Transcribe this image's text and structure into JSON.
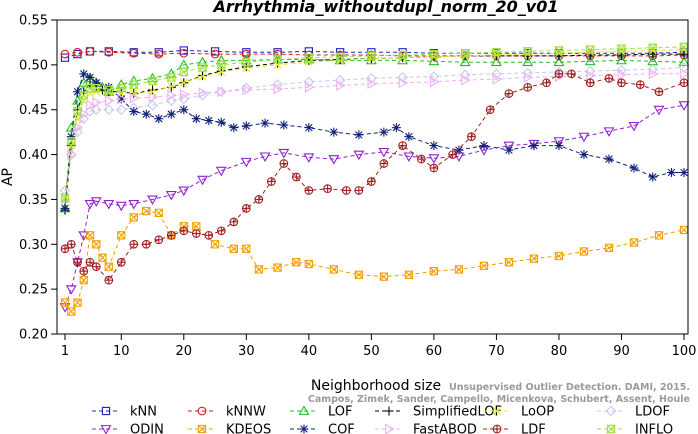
{
  "chart_data": {
    "type": "line",
    "title": "Arrhythmia_withoutdupl_norm_20_v01",
    "xlabel": "Neighborhood size",
    "ylabel": "AP",
    "xlim": [
      1,
      100
    ],
    "ylim": [
      0.2,
      0.55
    ],
    "xticks": [
      1,
      10,
      20,
      30,
      40,
      50,
      60,
      70,
      80,
      90,
      100
    ],
    "yticks": [
      0.2,
      0.25,
      0.3,
      0.35,
      0.4,
      0.45,
      0.5,
      0.55
    ],
    "legend_position": "bottom",
    "grid": false,
    "watermark": [
      "Campos, Zimek, Sander, Campello, Micenkova, Schubert, Assent, Houle",
      "Unsupervised Outlier Detection. DAMI, 2015."
    ],
    "series": [
      {
        "name": "kNN",
        "color": "#2020c8",
        "marker": "square",
        "x": [
          1,
          3,
          5,
          8,
          12,
          16,
          20,
          25,
          30,
          35,
          40,
          45,
          50,
          55,
          60,
          65,
          70,
          75,
          80,
          85,
          90,
          95,
          100
        ],
        "y": [
          0.508,
          0.512,
          0.515,
          0.515,
          0.514,
          0.514,
          0.516,
          0.515,
          0.514,
          0.514,
          0.515,
          0.514,
          0.514,
          0.514,
          0.513,
          0.513,
          0.513,
          0.513,
          0.513,
          0.513,
          0.513,
          0.513,
          0.514
        ]
      },
      {
        "name": "kNNW",
        "color": "#d02020",
        "marker": "circle",
        "x": [
          1,
          3,
          5,
          8,
          12,
          16,
          20,
          25,
          30,
          35,
          40,
          45,
          50,
          55,
          60,
          65,
          70,
          75,
          80,
          85,
          90,
          95,
          100
        ],
        "y": [
          0.512,
          0.514,
          0.515,
          0.514,
          0.513,
          0.512,
          0.513,
          0.512,
          0.512,
          0.512,
          0.511,
          0.511,
          0.511,
          0.51,
          0.51,
          0.51,
          0.51,
          0.51,
          0.51,
          0.51,
          0.51,
          0.51,
          0.511
        ]
      },
      {
        "name": "LOF",
        "color": "#20c020",
        "marker": "triangle",
        "x": [
          1,
          2,
          3,
          4,
          5,
          6,
          7,
          8,
          10,
          12,
          15,
          18,
          20,
          23,
          26,
          30,
          35,
          40,
          45,
          50,
          55,
          60,
          65,
          70,
          75,
          80,
          85,
          90,
          95,
          100
        ],
        "y": [
          0.34,
          0.43,
          0.46,
          0.48,
          0.485,
          0.48,
          0.475,
          0.47,
          0.478,
          0.482,
          0.485,
          0.49,
          0.5,
          0.503,
          0.505,
          0.505,
          0.506,
          0.506,
          0.505,
          0.505,
          0.505,
          0.504,
          0.503,
          0.503,
          0.503,
          0.503,
          0.504,
          0.505,
          0.504,
          0.503
        ]
      },
      {
        "name": "SimplifiedLOF",
        "color": "#000000",
        "marker": "plus",
        "x": [
          1,
          2,
          3,
          4,
          5,
          6,
          7,
          8,
          10,
          12,
          15,
          18,
          20,
          23,
          26,
          30,
          35,
          40,
          45,
          50,
          55,
          60,
          65,
          70,
          75,
          80,
          85,
          90,
          95,
          100
        ],
        "y": [
          0.338,
          0.41,
          0.45,
          0.47,
          0.478,
          0.476,
          0.472,
          0.47,
          0.47,
          0.468,
          0.472,
          0.475,
          0.48,
          0.488,
          0.493,
          0.498,
          0.502,
          0.505,
          0.506,
          0.507,
          0.508,
          0.509,
          0.51,
          0.51,
          0.51,
          0.51,
          0.511,
          0.511,
          0.512,
          0.512
        ]
      },
      {
        "name": "LoOP",
        "color": "#e8e820",
        "marker": "x",
        "x": [
          1,
          2,
          3,
          4,
          5,
          6,
          8,
          10,
          12,
          15,
          18,
          20,
          23,
          26,
          30,
          35,
          40,
          45,
          50,
          55,
          60,
          65,
          70,
          75,
          80,
          85,
          90,
          95,
          100
        ],
        "y": [
          0.35,
          0.41,
          0.44,
          0.46,
          0.468,
          0.47,
          0.47,
          0.468,
          0.468,
          0.47,
          0.476,
          0.48,
          0.487,
          0.492,
          0.496,
          0.5,
          0.503,
          0.505,
          0.507,
          0.508,
          0.509,
          0.51,
          0.511,
          0.512,
          0.513,
          0.514,
          0.515,
          0.516,
          0.517
        ]
      },
      {
        "name": "LDOF",
        "color": "#c8c8f0",
        "marker": "diamond",
        "x": [
          1,
          2,
          3,
          4,
          5,
          6,
          8,
          10,
          12,
          15,
          18,
          20,
          23,
          26,
          30,
          35,
          40,
          45,
          50,
          55,
          60,
          65,
          70,
          75,
          80,
          85,
          90,
          95,
          100
        ],
        "y": [
          0.36,
          0.4,
          0.425,
          0.44,
          0.448,
          0.45,
          0.45,
          0.45,
          0.452,
          0.455,
          0.46,
          0.462,
          0.466,
          0.47,
          0.474,
          0.478,
          0.481,
          0.483,
          0.485,
          0.486,
          0.487,
          0.489,
          0.49,
          0.491,
          0.492,
          0.493,
          0.494,
          0.495,
          0.497
        ]
      },
      {
        "name": "ODIN",
        "color": "#9020d0",
        "marker": "triangle-down",
        "x": [
          1,
          2,
          3,
          4,
          5,
          6,
          8,
          10,
          12,
          15,
          18,
          20,
          23,
          26,
          30,
          33,
          36,
          40,
          44,
          48,
          52,
          56,
          60,
          64,
          68,
          72,
          76,
          80,
          84,
          88,
          92,
          96,
          100
        ],
        "y": [
          0.23,
          0.25,
          0.28,
          0.31,
          0.345,
          0.348,
          0.345,
          0.343,
          0.345,
          0.35,
          0.355,
          0.36,
          0.372,
          0.382,
          0.392,
          0.398,
          0.402,
          0.397,
          0.395,
          0.4,
          0.403,
          0.398,
          0.396,
          0.398,
          0.405,
          0.41,
          0.412,
          0.415,
          0.42,
          0.426,
          0.432,
          0.45,
          0.455
        ]
      },
      {
        "name": "KDEOS",
        "color": "#f0a000",
        "marker": "box-x",
        "x": [
          1,
          2,
          3,
          4,
          5,
          6,
          7,
          8,
          10,
          12,
          14,
          16,
          18,
          20,
          22,
          25,
          28,
          30,
          32,
          35,
          38,
          40,
          44,
          48,
          52,
          56,
          60,
          64,
          68,
          72,
          76,
          80,
          84,
          88,
          92,
          96,
          100
        ],
        "y": [
          0.235,
          0.225,
          0.235,
          0.26,
          0.31,
          0.3,
          0.285,
          0.275,
          0.31,
          0.33,
          0.337,
          0.335,
          0.31,
          0.32,
          0.32,
          0.3,
          0.295,
          0.295,
          0.272,
          0.274,
          0.28,
          0.278,
          0.272,
          0.266,
          0.264,
          0.266,
          0.27,
          0.272,
          0.276,
          0.28,
          0.284,
          0.287,
          0.292,
          0.296,
          0.302,
          0.31,
          0.316
        ]
      },
      {
        "name": "COF",
        "color": "#10207a",
        "marker": "star",
        "x": [
          1,
          2,
          3,
          4,
          5,
          6,
          8,
          10,
          12,
          14,
          16,
          18,
          20,
          22,
          24,
          26,
          28,
          30,
          33,
          36,
          40,
          44,
          48,
          52,
          54,
          56,
          60,
          64,
          68,
          72,
          76,
          80,
          84,
          88,
          92,
          95,
          98,
          100
        ],
        "y": [
          0.34,
          0.42,
          0.47,
          0.49,
          0.486,
          0.48,
          0.475,
          0.462,
          0.448,
          0.445,
          0.44,
          0.445,
          0.45,
          0.44,
          0.438,
          0.436,
          0.43,
          0.432,
          0.435,
          0.433,
          0.43,
          0.425,
          0.422,
          0.425,
          0.43,
          0.42,
          0.41,
          0.405,
          0.41,
          0.405,
          0.41,
          0.41,
          0.4,
          0.395,
          0.385,
          0.375,
          0.38,
          0.38
        ]
      },
      {
        "name": "FastABOD",
        "color": "#f0b0f0",
        "marker": "triangle-right",
        "x": [
          1,
          2,
          3,
          4,
          5,
          6,
          8,
          10,
          12,
          15,
          18,
          20,
          23,
          26,
          30,
          35,
          40,
          45,
          50,
          55,
          60,
          65,
          70,
          75,
          80,
          85,
          90,
          95,
          100
        ],
        "y": [
          0.35,
          0.4,
          0.43,
          0.445,
          0.455,
          0.458,
          0.46,
          0.462,
          0.463,
          0.464,
          0.466,
          0.467,
          0.469,
          0.47,
          0.472,
          0.473,
          0.475,
          0.477,
          0.479,
          0.48,
          0.481,
          0.483,
          0.484,
          0.486,
          0.487,
          0.488,
          0.489,
          0.49,
          0.49
        ]
      },
      {
        "name": "LDF",
        "color": "#a02020",
        "marker": "circle-plus",
        "x": [
          1,
          2,
          3,
          4,
          5,
          6,
          8,
          10,
          12,
          14,
          16,
          18,
          20,
          22,
          24,
          26,
          28,
          30,
          32,
          34,
          36,
          38,
          40,
          43,
          46,
          48,
          50,
          52,
          55,
          58,
          60,
          63,
          66,
          69,
          72,
          75,
          78,
          80,
          82,
          85,
          88,
          90,
          93,
          96,
          100
        ],
        "y": [
          0.295,
          0.3,
          0.28,
          0.27,
          0.28,
          0.275,
          0.26,
          0.28,
          0.3,
          0.3,
          0.305,
          0.31,
          0.315,
          0.312,
          0.31,
          0.315,
          0.325,
          0.34,
          0.35,
          0.37,
          0.39,
          0.375,
          0.36,
          0.362,
          0.36,
          0.36,
          0.37,
          0.39,
          0.41,
          0.395,
          0.385,
          0.4,
          0.42,
          0.45,
          0.468,
          0.475,
          0.48,
          0.49,
          0.49,
          0.48,
          0.485,
          0.48,
          0.478,
          0.47,
          0.48
        ]
      },
      {
        "name": "INFLO",
        "color": "#a0e040",
        "marker": "hourglass",
        "x": [
          1,
          2,
          3,
          4,
          5,
          6,
          8,
          10,
          12,
          15,
          18,
          20,
          23,
          26,
          30,
          35,
          40,
          45,
          50,
          55,
          60,
          65,
          70,
          75,
          80,
          85,
          90,
          95,
          100
        ],
        "y": [
          0.352,
          0.415,
          0.448,
          0.466,
          0.474,
          0.474,
          0.472,
          0.474,
          0.478,
          0.482,
          0.486,
          0.492,
          0.497,
          0.5,
          0.503,
          0.506,
          0.508,
          0.509,
          0.51,
          0.511,
          0.512,
          0.513,
          0.514,
          0.515,
          0.516,
          0.517,
          0.518,
          0.519,
          0.52
        ]
      }
    ]
  }
}
